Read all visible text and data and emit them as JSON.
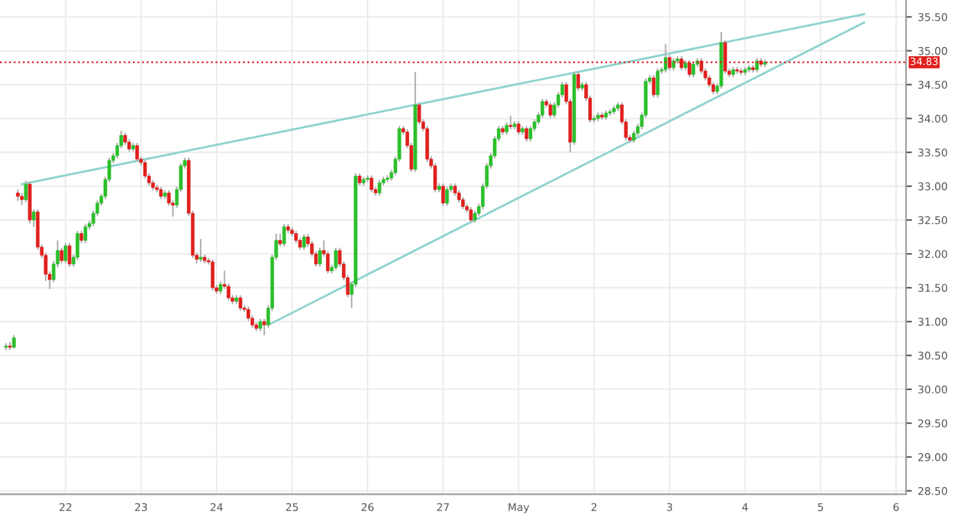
{
  "chart_data": {
    "type": "candlestick",
    "ylim": [
      28.45,
      35.75
    ],
    "categories": [
      null,
      null,
      null,
      null,
      null,
      null,
      null,
      null,
      null,
      null,
      null,
      null,
      null,
      null,
      null,
      null,
      "22",
      null,
      null,
      null,
      null,
      null,
      null,
      null,
      null,
      null,
      null,
      null,
      null,
      null,
      null,
      null,
      null,
      null,
      null,
      "23",
      null,
      null,
      null,
      null,
      null,
      null,
      null,
      null,
      null,
      null,
      null,
      null,
      null,
      null,
      null,
      null,
      null,
      null,
      "24",
      null,
      null,
      null,
      null,
      null,
      null,
      null,
      null,
      null,
      null,
      null,
      null,
      null,
      null,
      null,
      null,
      null,
      null,
      "25",
      null,
      null,
      null,
      null,
      null,
      null,
      null,
      null,
      null,
      null,
      null,
      null,
      null,
      null,
      null,
      null,
      null,
      null,
      "26",
      null,
      null,
      null,
      null,
      null,
      null,
      null,
      null,
      null,
      null,
      null,
      null,
      null,
      null,
      null,
      null,
      null,
      null,
      "27",
      null,
      null,
      null,
      null,
      null,
      null,
      null,
      null,
      null,
      null,
      null,
      null,
      null,
      null,
      null,
      null,
      null,
      null,
      "May",
      null,
      null,
      null,
      null,
      null,
      null,
      null,
      null,
      null,
      null,
      null,
      null,
      null,
      null,
      null,
      null,
      null,
      null,
      "2",
      null,
      null,
      null,
      null,
      null,
      null,
      null,
      null,
      null,
      null,
      null,
      null,
      null,
      null,
      null,
      null,
      null,
      null,
      "3",
      null,
      null,
      null,
      null,
      null,
      null,
      null,
      null,
      null,
      null,
      null,
      null,
      null,
      null,
      null,
      null,
      null,
      null,
      "4",
      null,
      null,
      null,
      null,
      null,
      null,
      null,
      null,
      null,
      null,
      null,
      null,
      null,
      null,
      null,
      null,
      null,
      null,
      "5",
      null,
      null,
      null,
      null,
      null,
      null,
      null,
      null,
      null,
      null,
      null,
      null,
      null,
      null,
      null,
      null,
      null,
      null,
      "6",
      null,
      null
    ],
    "yticks": [
      {
        "value": 28.5,
        "label": "28.50"
      },
      {
        "value": 29,
        "label": "29.00"
      },
      {
        "value": 29.5,
        "label": "29.50"
      },
      {
        "value": 30,
        "label": "30.00"
      },
      {
        "value": 30.5,
        "label": "30.50"
      },
      {
        "value": 31,
        "label": "31.00"
      },
      {
        "value": 31.5,
        "label": "31.50"
      },
      {
        "value": 32,
        "label": "32.00"
      },
      {
        "value": 32.5,
        "label": "32.50"
      },
      {
        "value": 33,
        "label": "33.00"
      },
      {
        "value": 33.5,
        "label": "33.50"
      },
      {
        "value": 34,
        "label": "34.00"
      },
      {
        "value": 34.5,
        "label": "34.50"
      },
      {
        "value": 35,
        "label": "35.00"
      },
      {
        "value": 35.5,
        "label": "35.50"
      }
    ],
    "grid": true,
    "ref_lines": [
      {
        "axis": "y",
        "value": 34.83,
        "label": "34.83",
        "color": "#e0201e",
        "line_style": "dotted"
      }
    ],
    "series": [
      {
        "type": "line",
        "color": "#8fd3cf",
        "values": [
          null,
          null,
          null,
          null,
          null,
          33.03,
          null,
          null,
          null,
          null,
          null,
          null,
          null,
          null,
          null,
          null,
          null,
          null,
          null,
          null,
          null,
          null,
          null,
          null,
          null,
          null,
          null,
          null,
          null,
          null,
          null,
          null,
          null,
          null,
          null,
          null,
          null,
          null,
          null,
          null,
          null,
          null,
          null,
          null,
          null,
          null,
          null,
          null,
          null,
          null,
          null,
          null,
          null,
          null,
          null,
          null,
          null,
          null,
          null,
          null,
          null,
          null,
          null,
          null,
          null,
          null,
          null,
          null,
          null,
          null,
          null,
          null,
          null,
          null,
          null,
          null,
          null,
          null,
          null,
          null,
          null,
          null,
          null,
          null,
          null,
          null,
          null,
          null,
          null,
          null,
          null,
          null,
          null,
          null,
          null,
          null,
          null,
          null,
          null,
          null,
          null,
          null,
          null,
          null,
          null,
          null,
          null,
          null,
          null,
          null,
          null,
          null,
          null,
          null,
          null,
          null,
          null,
          null,
          null,
          null,
          null,
          null,
          null,
          null,
          null,
          null,
          null,
          null,
          null,
          null,
          null,
          null,
          null,
          null,
          null,
          null,
          null,
          null,
          null,
          null,
          null,
          null,
          null,
          null,
          null,
          null,
          null,
          null,
          null,
          null,
          null,
          null,
          null,
          null,
          null,
          null,
          null,
          null,
          null,
          null,
          null,
          null,
          null,
          null,
          null,
          null,
          null,
          null,
          null,
          null,
          null,
          null,
          null,
          null,
          null,
          null,
          null,
          null,
          null,
          null,
          null,
          null,
          null,
          null,
          null,
          null,
          null,
          null,
          null,
          null,
          null,
          null,
          null,
          null,
          null,
          null,
          null,
          null,
          null,
          null,
          null,
          null,
          null,
          null,
          null,
          null,
          null,
          null,
          null,
          null,
          null,
          null,
          null,
          null,
          null,
          null,
          null,
          35.54,
          null,
          null,
          null,
          null,
          null,
          null,
          null,
          null,
          null,
          null
        ]
      },
      {
        "type": "line",
        "color": "#8fd3cf",
        "values": [
          null,
          null,
          null,
          null,
          null,
          null,
          null,
          null,
          null,
          null,
          null,
          null,
          null,
          null,
          null,
          null,
          null,
          null,
          null,
          null,
          null,
          null,
          null,
          null,
          null,
          null,
          null,
          null,
          null,
          null,
          null,
          null,
          null,
          null,
          null,
          null,
          null,
          null,
          null,
          null,
          null,
          null,
          null,
          null,
          null,
          null,
          null,
          null,
          null,
          null,
          null,
          null,
          null,
          null,
          null,
          null,
          null,
          null,
          null,
          null,
          null,
          null,
          null,
          null,
          null,
          null,
          null,
          30.95,
          null,
          null,
          null,
          null,
          null,
          null,
          null,
          null,
          null,
          null,
          null,
          null,
          null,
          null,
          null,
          null,
          null,
          null,
          null,
          null,
          null,
          null,
          null,
          null,
          null,
          null,
          null,
          null,
          null,
          null,
          null,
          null,
          null,
          null,
          null,
          null,
          null,
          null,
          null,
          null,
          null,
          null,
          null,
          null,
          null,
          null,
          null,
          null,
          null,
          null,
          null,
          null,
          null,
          null,
          null,
          null,
          null,
          null,
          null,
          null,
          null,
          null,
          null,
          null,
          null,
          null,
          null,
          null,
          null,
          null,
          null,
          null,
          null,
          null,
          null,
          null,
          null,
          null,
          null,
          null,
          null,
          null,
          null,
          null,
          null,
          null,
          null,
          null,
          null,
          null,
          null,
          null,
          null,
          null,
          null,
          null,
          null,
          null,
          null,
          null,
          null,
          null,
          null,
          null,
          null,
          null,
          null,
          null,
          null,
          null,
          null,
          null,
          null,
          null,
          null,
          null,
          null,
          null,
          null,
          null,
          null,
          null,
          null,
          null,
          null,
          null,
          null,
          null,
          null,
          null,
          null,
          null,
          null,
          null,
          null,
          null,
          null,
          null,
          null,
          null,
          null,
          null,
          null,
          null,
          null,
          null,
          null,
          null,
          null,
          35.42,
          null,
          null,
          null,
          null,
          null,
          null,
          null,
          null,
          null,
          null
        ]
      },
      {
        "ohlc": [
          null,
          [
            30.62,
            30.68,
            30.58,
            30.64
          ],
          [
            30.64,
            30.7,
            30.58,
            30.62
          ],
          [
            30.62,
            30.8,
            30.6,
            30.76
          ],
          [
            32.9,
            32.95,
            32.78,
            32.85
          ],
          [
            32.85,
            32.9,
            32.72,
            32.8
          ],
          [
            32.8,
            33.08,
            32.76,
            33.03
          ],
          [
            33.03,
            33.06,
            32.45,
            32.5
          ],
          [
            32.5,
            32.66,
            32.4,
            32.62
          ],
          [
            32.62,
            32.66,
            32.06,
            32.1
          ],
          [
            32.1,
            32.14,
            31.94,
            31.98
          ],
          [
            31.98,
            32.02,
            31.6,
            31.7
          ],
          [
            31.7,
            31.74,
            31.48,
            31.62
          ],
          [
            31.62,
            31.9,
            31.58,
            31.85
          ],
          [
            31.85,
            32.2,
            31.8,
            32.05
          ],
          [
            32.05,
            32.09,
            31.86,
            31.9
          ],
          [
            31.9,
            32.16,
            31.86,
            32.12
          ],
          [
            32.12,
            32.16,
            31.81,
            31.85
          ],
          [
            31.85,
            31.99,
            31.81,
            31.95
          ],
          [
            31.95,
            32.34,
            31.91,
            32.3
          ],
          [
            32.3,
            32.34,
            32.16,
            32.2
          ],
          [
            32.2,
            32.44,
            32.16,
            32.4
          ],
          [
            32.4,
            32.49,
            32.36,
            32.45
          ],
          [
            32.45,
            32.64,
            32.41,
            32.6
          ],
          [
            32.6,
            32.79,
            32.56,
            32.75
          ],
          [
            32.75,
            32.89,
            32.71,
            32.85
          ],
          [
            32.85,
            33.14,
            32.81,
            33.1
          ],
          [
            33.1,
            33.42,
            33.06,
            33.38
          ],
          [
            33.38,
            33.49,
            33.34,
            33.45
          ],
          [
            33.45,
            33.64,
            33.41,
            33.6
          ],
          [
            33.6,
            33.82,
            33.56,
            33.75
          ],
          [
            33.75,
            33.79,
            33.61,
            33.65
          ],
          [
            33.65,
            33.69,
            33.51,
            33.55
          ],
          [
            33.55,
            33.64,
            33.51,
            33.6
          ],
          [
            33.6,
            33.64,
            33.36,
            33.4
          ],
          [
            33.4,
            33.44,
            33.31,
            33.35
          ],
          [
            33.35,
            33.39,
            33.11,
            33.15
          ],
          [
            33.15,
            33.19,
            33.01,
            33.05
          ],
          [
            33.05,
            33.09,
            32.94,
            32.98
          ],
          [
            32.98,
            33.02,
            32.91,
            32.95
          ],
          [
            32.95,
            32.99,
            32.81,
            32.85
          ],
          [
            32.85,
            32.94,
            32.81,
            32.9
          ],
          [
            32.9,
            32.94,
            32.71,
            32.75
          ],
          [
            32.75,
            32.79,
            32.55,
            32.72
          ],
          [
            32.72,
            32.99,
            32.68,
            32.95
          ],
          [
            32.95,
            33.34,
            32.91,
            33.3
          ],
          [
            33.3,
            33.42,
            33.26,
            33.38
          ],
          [
            33.38,
            33.42,
            32.56,
            32.6
          ],
          [
            32.6,
            32.64,
            31.94,
            31.98
          ],
          [
            31.98,
            32.02,
            31.86,
            31.92
          ],
          [
            31.92,
            32.22,
            31.88,
            31.95
          ],
          [
            31.95,
            31.99,
            31.86,
            31.9
          ],
          [
            31.9,
            31.94,
            31.84,
            31.88
          ],
          [
            31.88,
            31.92,
            31.46,
            31.5
          ],
          [
            31.5,
            31.54,
            31.41,
            31.45
          ],
          [
            31.45,
            31.59,
            31.41,
            31.55
          ],
          [
            31.55,
            31.75,
            31.48,
            31.52
          ],
          [
            31.52,
            31.56,
            31.31,
            31.35
          ],
          [
            31.35,
            31.39,
            31.26,
            31.3
          ],
          [
            31.3,
            31.39,
            31.26,
            31.35
          ],
          [
            31.35,
            31.39,
            31.16,
            31.2
          ],
          [
            31.2,
            31.24,
            31.14,
            31.18
          ],
          [
            31.18,
            31.22,
            31.01,
            31.05
          ],
          [
            31.05,
            31.09,
            30.91,
            30.95
          ],
          [
            30.95,
            30.99,
            30.86,
            30.9
          ],
          [
            30.9,
            31.04,
            30.86,
            31.0
          ],
          [
            31.0,
            31.04,
            30.8,
            30.95
          ],
          [
            30.95,
            31.24,
            30.91,
            31.2
          ],
          [
            31.2,
            31.99,
            31.16,
            31.95
          ],
          [
            31.95,
            32.3,
            31.91,
            32.2
          ],
          [
            32.2,
            32.3,
            32.11,
            32.15
          ],
          [
            32.15,
            32.44,
            32.11,
            32.4
          ],
          [
            32.4,
            32.44,
            32.31,
            32.35
          ],
          [
            32.35,
            32.39,
            32.26,
            32.3
          ],
          [
            32.3,
            32.34,
            32.16,
            32.2
          ],
          [
            32.2,
            32.24,
            32.06,
            32.1
          ],
          [
            32.1,
            32.29,
            32.06,
            32.25
          ],
          [
            32.25,
            32.29,
            32.11,
            32.15
          ],
          [
            32.15,
            32.19,
            31.96,
            32.0
          ],
          [
            32.0,
            32.04,
            31.81,
            31.85
          ],
          [
            31.85,
            32.09,
            31.81,
            32.05
          ],
          [
            32.05,
            32.2,
            31.96,
            32.0
          ],
          [
            32.0,
            32.04,
            31.71,
            31.75
          ],
          [
            31.75,
            31.84,
            31.71,
            31.8
          ],
          [
            31.8,
            32.09,
            31.76,
            32.05
          ],
          [
            32.05,
            32.09,
            31.81,
            31.85
          ],
          [
            31.85,
            31.89,
            31.61,
            31.65
          ],
          [
            31.65,
            31.69,
            31.36,
            31.4
          ],
          [
            31.4,
            31.59,
            31.2,
            31.55
          ],
          [
            31.55,
            33.19,
            31.51,
            33.15
          ],
          [
            33.15,
            33.19,
            33.01,
            33.05
          ],
          [
            33.05,
            33.14,
            33.01,
            33.1
          ],
          [
            33.1,
            33.16,
            33.06,
            33.12
          ],
          [
            33.12,
            33.16,
            32.91,
            32.95
          ],
          [
            32.95,
            32.99,
            32.86,
            32.9
          ],
          [
            32.9,
            33.09,
            32.86,
            33.05
          ],
          [
            33.05,
            33.14,
            33.01,
            33.1
          ],
          [
            33.1,
            33.16,
            33.06,
            33.12
          ],
          [
            33.12,
            33.24,
            33.08,
            33.2
          ],
          [
            33.2,
            33.44,
            33.16,
            33.4
          ],
          [
            33.4,
            33.89,
            33.36,
            33.85
          ],
          [
            33.85,
            33.89,
            33.76,
            33.8
          ],
          [
            33.8,
            33.84,
            33.56,
            33.6
          ],
          [
            33.6,
            33.64,
            33.21,
            33.25
          ],
          [
            33.25,
            34.69,
            33.21,
            34.2
          ],
          [
            34.2,
            34.24,
            33.91,
            33.95
          ],
          [
            33.95,
            33.99,
            33.81,
            33.85
          ],
          [
            33.85,
            33.89,
            33.36,
            33.4
          ],
          [
            33.4,
            33.44,
            33.26,
            33.3
          ],
          [
            33.3,
            33.34,
            32.91,
            32.95
          ],
          [
            32.95,
            33.04,
            32.91,
            33.0
          ],
          [
            33.0,
            33.04,
            32.71,
            32.75
          ],
          [
            32.75,
            32.99,
            32.71,
            32.95
          ],
          [
            32.95,
            33.04,
            32.91,
            33.0
          ],
          [
            33.0,
            33.04,
            32.86,
            32.9
          ],
          [
            32.9,
            32.94,
            32.76,
            32.8
          ],
          [
            32.8,
            32.84,
            32.66,
            32.7
          ],
          [
            32.7,
            32.74,
            32.61,
            32.65
          ],
          [
            32.65,
            32.69,
            32.46,
            32.5
          ],
          [
            32.5,
            32.64,
            32.46,
            32.6
          ],
          [
            32.6,
            32.74,
            32.56,
            32.7
          ],
          [
            32.7,
            33.04,
            32.66,
            33.0
          ],
          [
            33.0,
            33.34,
            32.96,
            33.3
          ],
          [
            33.3,
            33.49,
            33.26,
            33.45
          ],
          [
            33.45,
            33.74,
            33.41,
            33.7
          ],
          [
            33.7,
            33.89,
            33.66,
            33.85
          ],
          [
            33.85,
            33.89,
            33.76,
            33.8
          ],
          [
            33.8,
            33.94,
            33.76,
            33.9
          ],
          [
            33.9,
            34.04,
            33.84,
            33.88
          ],
          [
            33.88,
            33.96,
            33.84,
            33.92
          ],
          [
            33.92,
            33.96,
            33.76,
            33.8
          ],
          [
            33.8,
            33.89,
            33.76,
            33.85
          ],
          [
            33.85,
            33.89,
            33.66,
            33.7
          ],
          [
            33.7,
            33.89,
            33.66,
            33.85
          ],
          [
            33.85,
            33.99,
            33.81,
            33.95
          ],
          [
            33.95,
            34.09,
            33.91,
            34.05
          ],
          [
            34.05,
            34.29,
            34.01,
            34.25
          ],
          [
            34.25,
            34.29,
            34.16,
            34.2
          ],
          [
            34.2,
            34.24,
            34.01,
            34.05
          ],
          [
            34.05,
            34.24,
            34.01,
            34.2
          ],
          [
            34.2,
            34.39,
            34.16,
            34.35
          ],
          [
            34.35,
            34.54,
            34.31,
            34.5
          ],
          [
            34.5,
            34.54,
            34.21,
            34.25
          ],
          [
            34.25,
            34.29,
            33.5,
            33.65
          ],
          [
            33.65,
            34.69,
            33.61,
            34.65
          ],
          [
            34.65,
            34.69,
            34.41,
            34.45
          ],
          [
            34.45,
            34.54,
            34.41,
            34.5
          ],
          [
            34.5,
            34.54,
            34.26,
            34.3
          ],
          [
            34.3,
            34.34,
            33.94,
            33.98
          ],
          [
            33.98,
            34.04,
            33.94,
            34.0
          ],
          [
            34.0,
            34.09,
            33.96,
            34.05
          ],
          [
            34.05,
            34.09,
            33.98,
            34.02
          ],
          [
            34.02,
            34.12,
            33.98,
            34.08
          ],
          [
            34.08,
            34.14,
            34.04,
            34.1
          ],
          [
            34.1,
            34.19,
            34.06,
            34.15
          ],
          [
            34.15,
            34.24,
            34.11,
            34.2
          ],
          [
            34.2,
            34.24,
            33.91,
            33.95
          ],
          [
            33.95,
            33.99,
            33.68,
            33.72
          ],
          [
            33.72,
            33.76,
            33.64,
            33.68
          ],
          [
            33.68,
            33.82,
            33.64,
            33.78
          ],
          [
            33.78,
            33.92,
            33.74,
            33.88
          ],
          [
            33.88,
            34.09,
            33.84,
            34.05
          ],
          [
            34.05,
            34.59,
            34.01,
            34.55
          ],
          [
            34.55,
            34.64,
            34.51,
            34.6
          ],
          [
            34.6,
            34.64,
            34.31,
            34.35
          ],
          [
            34.35,
            34.74,
            34.31,
            34.7
          ],
          [
            34.7,
            34.76,
            34.66,
            34.72
          ],
          [
            34.72,
            35.1,
            34.68,
            34.9
          ],
          [
            34.9,
            34.94,
            34.71,
            34.75
          ],
          [
            34.75,
            34.89,
            34.71,
            34.85
          ],
          [
            34.85,
            34.92,
            34.81,
            34.88
          ],
          [
            34.88,
            34.92,
            34.71,
            34.75
          ],
          [
            34.75,
            34.86,
            34.71,
            34.82
          ],
          [
            34.82,
            34.86,
            34.61,
            34.65
          ],
          [
            34.65,
            34.84,
            34.61,
            34.8
          ],
          [
            34.8,
            34.89,
            34.76,
            34.85
          ],
          [
            34.85,
            34.89,
            34.66,
            34.7
          ],
          [
            34.7,
            34.74,
            34.56,
            34.6
          ],
          [
            34.6,
            34.64,
            34.46,
            34.5
          ],
          [
            34.5,
            34.54,
            34.36,
            34.4
          ],
          [
            34.4,
            34.52,
            34.36,
            34.48
          ],
          [
            34.48,
            35.28,
            34.44,
            35.12
          ],
          [
            35.12,
            35.16,
            34.66,
            34.7
          ],
          [
            34.7,
            34.74,
            34.61,
            34.65
          ],
          [
            34.65,
            34.76,
            34.61,
            34.72
          ],
          [
            34.72,
            34.76,
            34.66,
            34.7
          ],
          [
            34.7,
            34.74,
            34.64,
            34.68
          ],
          [
            34.68,
            34.76,
            34.64,
            34.72
          ],
          [
            34.72,
            34.79,
            34.68,
            34.75
          ],
          [
            34.75,
            34.79,
            34.68,
            34.72
          ],
          [
            34.72,
            34.89,
            34.68,
            34.85
          ],
          [
            34.85,
            34.89,
            34.76,
            34.8
          ],
          [
            34.8,
            34.87,
            34.76,
            34.83
          ],
          null,
          null,
          null,
          null,
          null,
          null,
          null,
          null,
          null,
          null,
          null,
          null,
          null,
          null,
          null,
          null,
          null,
          null,
          null,
          null,
          null,
          null,
          null,
          null,
          null,
          null,
          null,
          null,
          null,
          null,
          null,
          null,
          null,
          null,
          null
        ],
        "colors": [
          null,
          "#2bbf2b",
          "#e0201e",
          "#2bbf2b",
          "#e0201e",
          "#e0201e",
          "#2bbf2b",
          "#e0201e",
          "#2bbf2b",
          "#e0201e",
          "#e0201e",
          "#e0201e",
          "#e0201e",
          "#2bbf2b",
          "#2bbf2b",
          "#e0201e",
          "#2bbf2b",
          "#e0201e",
          "#2bbf2b",
          "#2bbf2b",
          "#e0201e",
          "#2bbf2b",
          "#2bbf2b",
          "#2bbf2b",
          "#2bbf2b",
          "#2bbf2b",
          "#2bbf2b",
          "#2bbf2b",
          "#2bbf2b",
          "#2bbf2b",
          "#2bbf2b",
          "#e0201e",
          "#e0201e",
          "#2bbf2b",
          "#e0201e",
          "#e0201e",
          "#e0201e",
          "#e0201e",
          "#e0201e",
          "#e0201e",
          "#e0201e",
          "#2bbf2b",
          "#e0201e",
          "#e0201e",
          "#2bbf2b",
          "#2bbf2b",
          "#2bbf2b",
          "#e0201e",
          "#e0201e",
          "#e0201e",
          "#2bbf2b",
          "#e0201e",
          "#e0201e",
          "#e0201e",
          "#e0201e",
          "#2bbf2b",
          "#e0201e",
          "#e0201e",
          "#e0201e",
          "#2bbf2b",
          "#e0201e",
          "#e0201e",
          "#e0201e",
          "#e0201e",
          "#e0201e",
          "#2bbf2b",
          "#e0201e",
          "#2bbf2b",
          "#2bbf2b",
          "#2bbf2b",
          "#e0201e",
          "#2bbf2b",
          "#e0201e",
          "#e0201e",
          "#e0201e",
          "#e0201e",
          "#2bbf2b",
          "#e0201e",
          "#e0201e",
          "#e0201e",
          "#2bbf2b",
          "#e0201e",
          "#e0201e",
          "#2bbf2b",
          "#2bbf2b",
          "#e0201e",
          "#e0201e",
          "#e0201e",
          "#2bbf2b",
          "#2bbf2b",
          "#e0201e",
          "#2bbf2b",
          "#2bbf2b",
          "#e0201e",
          "#e0201e",
          "#2bbf2b",
          "#2bbf2b",
          "#2bbf2b",
          "#2bbf2b",
          "#2bbf2b",
          "#2bbf2b",
          "#e0201e",
          "#e0201e",
          "#e0201e",
          "#2bbf2b",
          "#e0201e",
          "#e0201e",
          "#e0201e",
          "#e0201e",
          "#e0201e",
          "#2bbf2b",
          "#e0201e",
          "#2bbf2b",
          "#2bbf2b",
          "#e0201e",
          "#e0201e",
          "#e0201e",
          "#e0201e",
          "#e0201e",
          "#2bbf2b",
          "#2bbf2b",
          "#2bbf2b",
          "#2bbf2b",
          "#2bbf2b",
          "#2bbf2b",
          "#2bbf2b",
          "#e0201e",
          "#2bbf2b",
          "#e0201e",
          "#2bbf2b",
          "#e0201e",
          "#2bbf2b",
          "#e0201e",
          "#2bbf2b",
          "#2bbf2b",
          "#2bbf2b",
          "#2bbf2b",
          "#e0201e",
          "#e0201e",
          "#2bbf2b",
          "#2bbf2b",
          "#2bbf2b",
          "#e0201e",
          "#e0201e",
          "#2bbf2b",
          "#e0201e",
          "#2bbf2b",
          "#e0201e",
          "#e0201e",
          "#2bbf2b",
          "#2bbf2b",
          "#e0201e",
          "#2bbf2b",
          "#2bbf2b",
          "#2bbf2b",
          "#2bbf2b",
          "#e0201e",
          "#e0201e",
          "#e0201e",
          "#2bbf2b",
          "#2bbf2b",
          "#2bbf2b",
          "#2bbf2b",
          "#2bbf2b",
          "#e0201e",
          "#2bbf2b",
          "#2bbf2b",
          "#2bbf2b",
          "#e0201e",
          "#2bbf2b",
          "#2bbf2b",
          "#e0201e",
          "#2bbf2b",
          "#e0201e",
          "#2bbf2b",
          "#2bbf2b",
          "#e0201e",
          "#e0201e",
          "#e0201e",
          "#e0201e",
          "#2bbf2b",
          "#2bbf2b",
          "#e0201e",
          "#e0201e",
          "#2bbf2b",
          "#e0201e",
          "#e0201e",
          "#2bbf2b",
          "#2bbf2b",
          "#e0201e",
          "#2bbf2b",
          "#e0201e",
          "#2bbf2b",
          null,
          null,
          null,
          null,
          null,
          null,
          null,
          null,
          null,
          null,
          null,
          null,
          null,
          null,
          null,
          null,
          null,
          null,
          null,
          null,
          null,
          null,
          null,
          null,
          null,
          null,
          null,
          null,
          null,
          null,
          null,
          null,
          null,
          null,
          null
        ]
      }
    ]
  }
}
